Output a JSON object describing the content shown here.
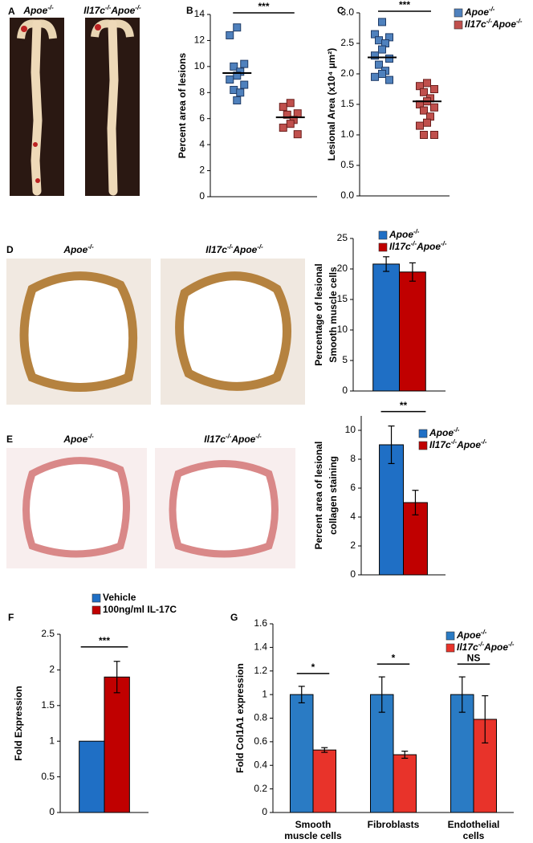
{
  "panel_a": {
    "panel": "A",
    "image_labels": [
      [
        "Apoe",
        "-/-"
      ],
      [
        "Il17c",
        "-/-",
        "Apoe",
        "-/-"
      ]
    ]
  },
  "chart_data": [
    {
      "type": "dotplot",
      "panel": "B",
      "ylabel": "Percent area of lesions",
      "ylim": [
        0,
        14
      ],
      "yticks": [
        0,
        2,
        4,
        6,
        8,
        10,
        12,
        14
      ],
      "significance": "***",
      "series": [
        {
          "name": [
            "Apoe",
            "-/-"
          ],
          "color": "#4f81bd",
          "values": [
            13.0,
            12.4,
            10.2,
            10.0,
            9.6,
            9.3,
            9.0,
            8.6,
            8.2,
            8.0,
            7.4
          ],
          "mean": 9.5
        },
        {
          "name": [
            "Il17c",
            "-/-",
            "Apoe",
            "-/-"
          ],
          "color": "#c0504d",
          "values": [
            7.2,
            6.9,
            6.4,
            6.3,
            5.9,
            5.6,
            5.3,
            4.8
          ],
          "mean": 6.1
        }
      ]
    },
    {
      "type": "dotplot",
      "panel": "C",
      "ylabel": "Lesional Area (x10⁴ µm²)",
      "ylim": [
        0,
        3.0
      ],
      "legend": true,
      "yticks": [
        {
          "value": 0,
          "label": "0.0"
        },
        {
          "value": 0.5,
          "label": "0.5"
        },
        {
          "value": 1,
          "label": "1.0"
        },
        {
          "value": 1.5,
          "label": "1.5"
        },
        {
          "value": 2,
          "label": "2.0"
        },
        {
          "value": 2.5,
          "label": "2.5"
        },
        {
          "value": 3,
          "label": "3.0"
        }
      ],
      "significance": "***",
      "series": [
        {
          "name": [
            "Apoe",
            "-/-"
          ],
          "color": "#4f81bd",
          "values": [
            2.85,
            2.65,
            2.6,
            2.55,
            2.5,
            2.4,
            2.3,
            2.25,
            2.15,
            2.05,
            2.0,
            1.95,
            1.9
          ],
          "mean": 2.27
        },
        {
          "name": [
            "Il17c",
            "-/-",
            "Apoe",
            "-/-"
          ],
          "color": "#c0504d",
          "values": [
            1.85,
            1.8,
            1.75,
            1.7,
            1.6,
            1.55,
            1.5,
            1.45,
            1.4,
            1.3,
            1.2,
            1.15,
            1.0,
            1.0
          ],
          "mean": 1.55
        }
      ]
    },
    {
      "type": "bar",
      "panel": "D",
      "image_labels": [
        [
          "Apoe",
          "-/-"
        ],
        [
          "Il17c",
          "-/-",
          "Apoe",
          "-/-"
        ]
      ],
      "ylabel": [
        "Percentage of lesional",
        "Smooth muscle cells"
      ],
      "ylim": [
        0,
        25
      ],
      "yticks": [
        0,
        5,
        10,
        15,
        20,
        25
      ],
      "legend": true,
      "series": [
        {
          "name": [
            "Apoe",
            "-/-"
          ],
          "color": "#1f6fc5",
          "values": [
            20.8
          ],
          "errors": [
            1.2
          ]
        },
        {
          "name": [
            "Il17c",
            "-/-",
            "Apoe",
            "-/-"
          ],
          "color": "#c00000",
          "values": [
            19.5
          ],
          "errors": [
            1.5
          ]
        }
      ]
    },
    {
      "type": "bar",
      "panel": "E",
      "image_labels": [
        [
          "Apoe",
          "-/-"
        ],
        [
          "Il17c",
          "-/-",
          "Apoe",
          "-/-"
        ]
      ],
      "ylabel": [
        "Percent area of lesional",
        "collagen staining"
      ],
      "ylim": [
        0,
        11
      ],
      "yticks": [
        0,
        2,
        4,
        6,
        8,
        10
      ],
      "legend": true,
      "significance": "**",
      "series": [
        {
          "name": [
            "Apoe",
            "-/-"
          ],
          "color": "#1f6fc5",
          "values": [
            9.0
          ],
          "errors": [
            1.3
          ]
        },
        {
          "name": [
            "Il17c",
            "-/-",
            "Apoe",
            "-/-"
          ],
          "color": "#c00000",
          "values": [
            5.0
          ],
          "errors": [
            0.85
          ]
        }
      ]
    },
    {
      "type": "bar",
      "panel": "F",
      "ylabel": "Fold Expression",
      "ylim": [
        0,
        2.5
      ],
      "yticks": [
        0,
        0.5,
        1,
        1.5,
        2,
        2.5
      ],
      "legend": true,
      "significance": "***",
      "series": [
        {
          "name": [
            "Vehicle"
          ],
          "color": "#1f6fc5",
          "values": [
            1.0
          ],
          "errors": [
            0
          ]
        },
        {
          "name": [
            "100ng/ml IL-17C"
          ],
          "color": "#c00000",
          "values": [
            1.9
          ],
          "errors": [
            0.22
          ]
        }
      ]
    },
    {
      "type": "bar",
      "panel": "G",
      "ylabel": "Fold Col1A1 expression",
      "ylim": [
        0,
        1.6
      ],
      "yticks": [
        0,
        0.2,
        0.4,
        0.6,
        0.8,
        1,
        1.2,
        1.4,
        1.6
      ],
      "legend": true,
      "categories": [
        [
          "Smooth",
          "muscle cells"
        ],
        [
          "Fibroblasts"
        ],
        [
          "Endothelial",
          "cells"
        ]
      ],
      "significance": [
        "*",
        "*",
        "NS"
      ],
      "series": [
        {
          "name": [
            "Apoe",
            "-/-"
          ],
          "color": "#2a7bc4",
          "values": [
            1.0,
            1.0,
            1.0
          ],
          "errors": [
            0.07,
            0.15,
            0.15
          ]
        },
        {
          "name": [
            "Il17c",
            "-/-",
            "Apoe",
            "-/-"
          ],
          "color": "#e8332a",
          "values": [
            0.53,
            0.49,
            0.79
          ],
          "errors": [
            0.02,
            0.03,
            0.2
          ]
        }
      ]
    }
  ]
}
